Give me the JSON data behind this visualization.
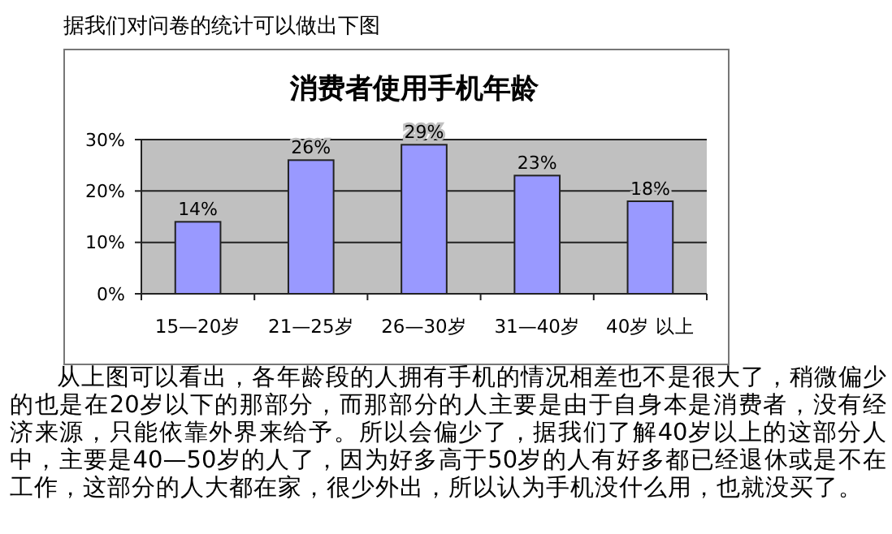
{
  "chart_data": {
    "type": "bar",
    "title": "消费者使用手机年龄",
    "subtitle": "据我们对问卷的统计可以做出下图",
    "categories": [
      "15—20岁",
      "21—25岁",
      "26—30岁",
      "31—40岁",
      "40岁 以上"
    ],
    "values": [
      14,
      26,
      29,
      23,
      18
    ],
    "color": "#9999ff",
    "value_labels": [
      "14%",
      "26%",
      "29%",
      "23%",
      "18%"
    ],
    "ylim": [
      0,
      30
    ],
    "yticks": [
      {
        "value": 0,
        "label": "0%"
      },
      {
        "value": 10,
        "label": "10%"
      },
      {
        "value": 20,
        "label": "20%"
      },
      {
        "value": 30,
        "label": "30%"
      }
    ],
    "grid": "y",
    "annotations": [
      "从上图可以看出，各年龄段的人拥有手机的情况相差也不是很大了，稍微偏少的也是在20岁以下的那部分，而那部分的人主要是由于自身本是消费者，没有经济来源，只能依靠外界来给予。所以会偏少了，据我们了解40岁以上的这部分人中，主要是40—50岁的人了，因为好多高于50岁的人有好多都已经退休或是不在工作，这部分的人大都在家，很少外出，所以认为手机没什么用，也就没买了。"
    ]
  }
}
